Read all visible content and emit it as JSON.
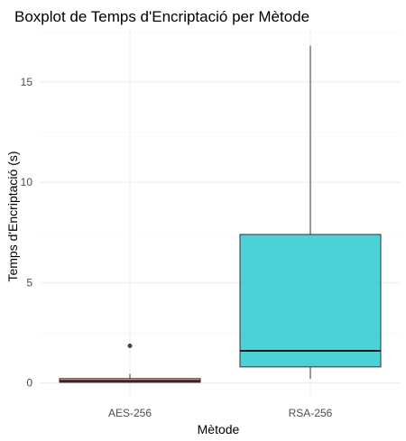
{
  "chart_data": {
    "type": "boxplot",
    "title": "Boxplot de Temps d'Encriptació per Mètode",
    "xlabel": "Mètode",
    "ylabel": "Temps d'Encriptació (s)",
    "ylim": [
      -0.6,
      17.6
    ],
    "y_ticks": [
      0,
      5,
      10,
      15
    ],
    "grid": true,
    "categories": [
      "AES-256",
      "RSA-256"
    ],
    "boxes": [
      {
        "category": "AES-256",
        "min": 0.0,
        "q1": 0.03,
        "median": 0.1,
        "q3": 0.22,
        "max": 0.45,
        "outliers": [
          1.85
        ],
        "color": "#f8766d"
      },
      {
        "category": "RSA-256",
        "min": 0.2,
        "q1": 0.8,
        "median": 1.6,
        "q3": 7.4,
        "max": 16.8,
        "outliers": [],
        "color": "#00bfc4"
      }
    ]
  }
}
